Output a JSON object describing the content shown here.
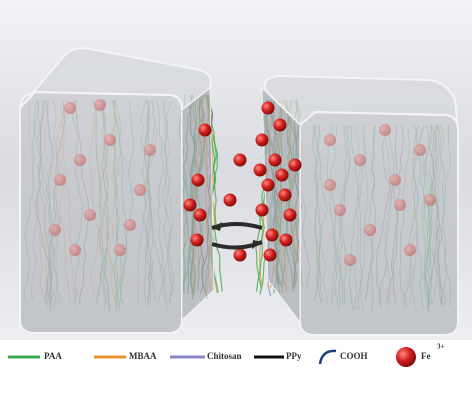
{
  "legend": {
    "items": [
      {
        "label": "PAA"
      },
      {
        "label": "MBAA"
      },
      {
        "label": "Chitosan"
      },
      {
        "label": "PPy"
      },
      {
        "label": "COOH"
      },
      {
        "label": "Fe",
        "superscript": "3+"
      }
    ]
  }
}
